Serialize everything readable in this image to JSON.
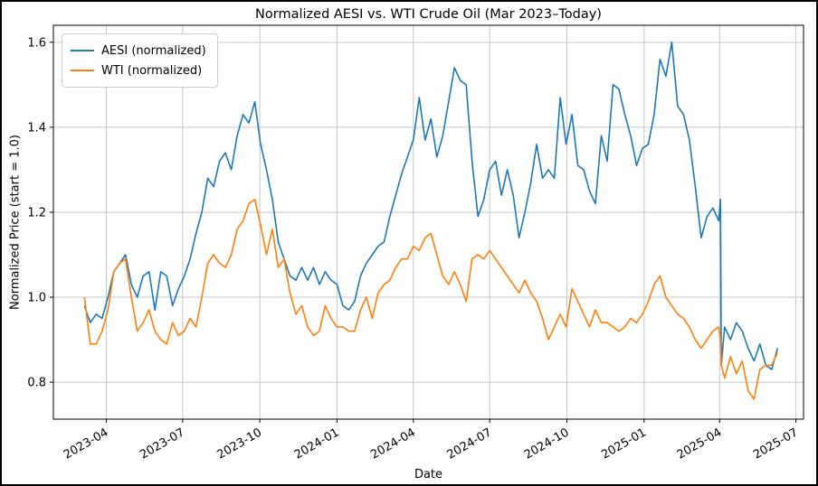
{
  "figure": {
    "border_color": "#000000",
    "background": "#ffffff"
  },
  "chart_data": {
    "type": "line",
    "title": "Normalized AESI vs. WTI Crude Oil (Mar 2023–Today)",
    "xlabel": "Date",
    "ylabel": "Normalized Price (start = 1.0)",
    "grid": true,
    "legend_position": "upper-left",
    "xlim": [
      "2023-01-28",
      "2025-07-10"
    ],
    "ylim": [
      0.713,
      1.64
    ],
    "y_ticks": [
      0.8,
      1.0,
      1.2,
      1.4,
      1.6
    ],
    "x_ticks": [
      {
        "label": "2023-04",
        "date": "2023-04-01"
      },
      {
        "label": "2023-07",
        "date": "2023-07-01"
      },
      {
        "label": "2023-10",
        "date": "2023-10-01"
      },
      {
        "label": "2024-01",
        "date": "2024-01-01"
      },
      {
        "label": "2024-04",
        "date": "2024-04-01"
      },
      {
        "label": "2024-07",
        "date": "2024-07-01"
      },
      {
        "label": "2024-10",
        "date": "2024-10-01"
      },
      {
        "label": "2025-01",
        "date": "2025-01-01"
      },
      {
        "label": "2025-04",
        "date": "2025-04-01"
      },
      {
        "label": "2025-07",
        "date": "2025-07-01"
      }
    ],
    "colors": {
      "aesi": "#1f77b4",
      "wti": "#ff7f0e",
      "grid": "#c6c6c6",
      "spine": "#000000"
    },
    "dates": [
      "2023-03-06",
      "2023-03-13",
      "2023-03-20",
      "2023-03-27",
      "2023-04-03",
      "2023-04-10",
      "2023-04-17",
      "2023-04-24",
      "2023-05-01",
      "2023-05-08",
      "2023-05-15",
      "2023-05-22",
      "2023-05-29",
      "2023-06-05",
      "2023-06-12",
      "2023-06-19",
      "2023-06-26",
      "2023-07-03",
      "2023-07-10",
      "2023-07-17",
      "2023-07-24",
      "2023-07-31",
      "2023-08-07",
      "2023-08-14",
      "2023-08-21",
      "2023-08-28",
      "2023-09-04",
      "2023-09-11",
      "2023-09-18",
      "2023-09-25",
      "2023-10-02",
      "2023-10-09",
      "2023-10-16",
      "2023-10-23",
      "2023-10-30",
      "2023-11-06",
      "2023-11-13",
      "2023-11-20",
      "2023-11-27",
      "2023-12-04",
      "2023-12-11",
      "2023-12-18",
      "2023-12-25",
      "2024-01-01",
      "2024-01-08",
      "2024-01-15",
      "2024-01-22",
      "2024-01-29",
      "2024-02-05",
      "2024-02-12",
      "2024-02-19",
      "2024-02-26",
      "2024-03-04",
      "2024-03-11",
      "2024-03-18",
      "2024-03-25",
      "2024-04-01",
      "2024-04-08",
      "2024-04-15",
      "2024-04-22",
      "2024-04-29",
      "2024-05-06",
      "2024-05-13",
      "2024-05-20",
      "2024-05-27",
      "2024-06-03",
      "2024-06-10",
      "2024-06-17",
      "2024-06-24",
      "2024-07-01",
      "2024-07-08",
      "2024-07-15",
      "2024-07-22",
      "2024-07-29",
      "2024-08-05",
      "2024-08-12",
      "2024-08-19",
      "2024-08-26",
      "2024-09-02",
      "2024-09-09",
      "2024-09-16",
      "2024-09-23",
      "2024-09-30",
      "2024-10-07",
      "2024-10-14",
      "2024-10-21",
      "2024-10-28",
      "2024-11-04",
      "2024-11-11",
      "2024-11-18",
      "2024-11-25",
      "2024-12-02",
      "2024-12-09",
      "2024-12-16",
      "2024-12-23",
      "2024-12-30",
      "2025-01-06",
      "2025-01-13",
      "2025-01-20",
      "2025-01-27",
      "2025-02-03",
      "2025-02-10",
      "2025-02-17",
      "2025-02-24",
      "2025-03-03",
      "2025-03-10",
      "2025-03-17",
      "2025-03-24",
      "2025-03-31",
      "2025-04-02",
      "2025-04-03",
      "2025-04-07",
      "2025-04-14",
      "2025-04-21",
      "2025-04-28",
      "2025-05-05",
      "2025-05-12",
      "2025-05-19",
      "2025-05-26",
      "2025-06-02",
      "2025-06-09"
    ],
    "series": [
      {
        "name": "AESI (normalized)",
        "color_key": "aesi",
        "values": [
          0.98,
          0.94,
          0.96,
          0.95,
          1.0,
          1.06,
          1.08,
          1.1,
          1.03,
          1.0,
          1.05,
          1.06,
          0.97,
          1.06,
          1.05,
          0.98,
          1.02,
          1.05,
          1.09,
          1.15,
          1.2,
          1.28,
          1.26,
          1.32,
          1.34,
          1.3,
          1.38,
          1.43,
          1.41,
          1.46,
          1.36,
          1.3,
          1.23,
          1.13,
          1.09,
          1.05,
          1.04,
          1.07,
          1.04,
          1.07,
          1.03,
          1.06,
          1.04,
          1.03,
          0.98,
          0.97,
          0.99,
          1.05,
          1.08,
          1.1,
          1.12,
          1.13,
          1.19,
          1.24,
          1.29,
          1.33,
          1.37,
          1.47,
          1.37,
          1.42,
          1.33,
          1.38,
          1.46,
          1.54,
          1.51,
          1.5,
          1.32,
          1.19,
          1.23,
          1.3,
          1.32,
          1.24,
          1.3,
          1.24,
          1.14,
          1.2,
          1.27,
          1.36,
          1.28,
          1.3,
          1.28,
          1.47,
          1.36,
          1.43,
          1.31,
          1.3,
          1.25,
          1.22,
          1.38,
          1.32,
          1.5,
          1.49,
          1.43,
          1.38,
          1.31,
          1.35,
          1.36,
          1.43,
          1.56,
          1.52,
          1.6,
          1.45,
          1.43,
          1.37,
          1.26,
          1.14,
          1.19,
          1.21,
          1.18,
          1.23,
          0.84,
          0.93,
          0.9,
          0.94,
          0.92,
          0.88,
          0.85,
          0.89,
          0.84,
          0.83,
          0.88
        ]
      },
      {
        "name": "WTI (normalized)",
        "color_key": "wti",
        "values": [
          1.0,
          0.89,
          0.89,
          0.92,
          0.97,
          1.06,
          1.08,
          1.09,
          1.0,
          0.92,
          0.94,
          0.97,
          0.92,
          0.9,
          0.89,
          0.94,
          0.91,
          0.92,
          0.95,
          0.93,
          1.0,
          1.08,
          1.1,
          1.08,
          1.07,
          1.1,
          1.16,
          1.18,
          1.22,
          1.23,
          1.17,
          1.1,
          1.16,
          1.07,
          1.09,
          1.01,
          0.96,
          0.98,
          0.93,
          0.91,
          0.92,
          0.98,
          0.95,
          0.93,
          0.93,
          0.92,
          0.92,
          0.97,
          1.0,
          0.95,
          1.01,
          1.03,
          1.04,
          1.07,
          1.09,
          1.09,
          1.12,
          1.11,
          1.14,
          1.15,
          1.1,
          1.05,
          1.03,
          1.06,
          1.03,
          0.99,
          1.09,
          1.1,
          1.09,
          1.11,
          1.09,
          1.07,
          1.05,
          1.03,
          1.01,
          1.04,
          1.01,
          0.99,
          0.95,
          0.9,
          0.93,
          0.96,
          0.93,
          1.02,
          0.99,
          0.96,
          0.93,
          0.97,
          0.94,
          0.94,
          0.93,
          0.92,
          0.93,
          0.95,
          0.94,
          0.96,
          0.99,
          1.03,
          1.05,
          1.0,
          0.98,
          0.96,
          0.95,
          0.93,
          0.9,
          0.88,
          0.9,
          0.92,
          0.93,
          0.9,
          0.84,
          0.81,
          0.86,
          0.82,
          0.85,
          0.78,
          0.76,
          0.83,
          0.84,
          0.84,
          0.87
        ]
      }
    ]
  }
}
